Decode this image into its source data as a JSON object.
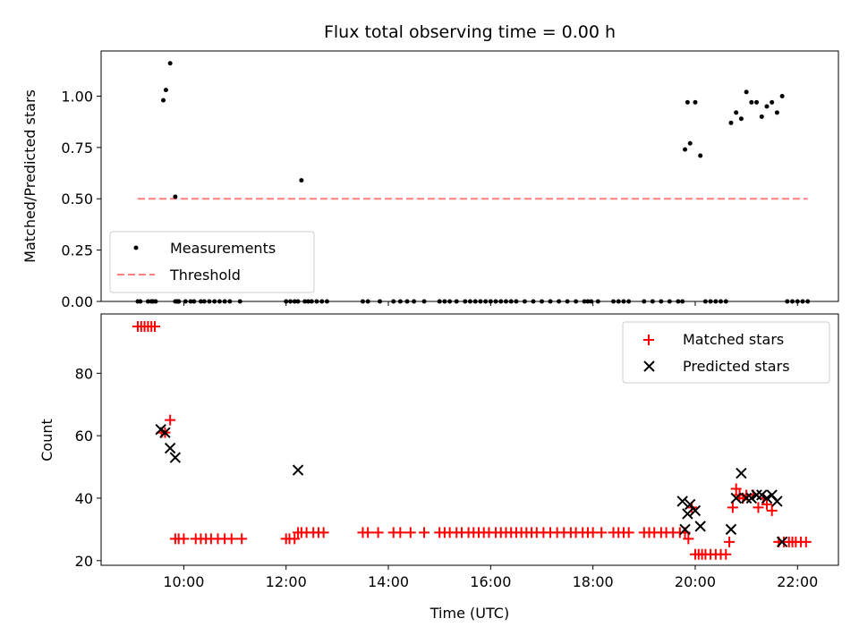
{
  "chart_data": [
    {
      "type": "scatter",
      "title": "Flux total observing time = 0.00 h",
      "xlabel": "",
      "ylabel": "Matched/Predicted stars",
      "ylim": [
        0,
        1.22
      ],
      "yticks": [
        "0.00",
        "0.25",
        "0.50",
        "0.75",
        "1.00"
      ],
      "yticks_values": [
        0,
        0.25,
        0.5,
        0.75,
        1.0
      ],
      "legend_position": "lower-left",
      "series": [
        {
          "name": "Measurements",
          "color": "#000000",
          "marker": "dot",
          "x": [
            "09:06",
            "09:09",
            "09:18",
            "09:22",
            "09:24",
            "09:27",
            "09:36",
            "09:39",
            "09:44",
            "09:50",
            "09:50",
            "09:52",
            "09:54",
            "09:54",
            "10:02",
            "10:08",
            "10:12",
            "10:20",
            "10:24",
            "10:30",
            "10:36",
            "10:42",
            "10:48",
            "10:54",
            "11:06",
            "12:00",
            "12:05",
            "12:10",
            "12:14",
            "12:18",
            "12:22",
            "12:26",
            "12:30",
            "12:36",
            "12:42",
            "12:48",
            "13:30",
            "13:36",
            "13:50",
            "14:06",
            "14:14",
            "14:22",
            "14:30",
            "14:42",
            "15:00",
            "15:06",
            "15:12",
            "15:20",
            "15:30",
            "15:36",
            "15:42",
            "15:48",
            "15:54",
            "16:00",
            "16:06",
            "16:12",
            "16:18",
            "16:24",
            "16:30",
            "16:40",
            "16:50",
            "17:00",
            "17:10",
            "17:20",
            "17:30",
            "17:40",
            "17:50",
            "17:54",
            "17:58",
            "18:06",
            "18:24",
            "18:30",
            "18:36",
            "18:42",
            "19:00",
            "19:10",
            "19:20",
            "19:30",
            "19:40",
            "19:45",
            "19:48",
            "19:51",
            "19:54",
            "20:00",
            "20:06",
            "20:12",
            "20:18",
            "20:24",
            "20:30",
            "20:36",
            "20:42",
            "20:48",
            "20:54",
            "21:00",
            "21:06",
            "21:12",
            "21:18",
            "21:24",
            "21:30",
            "21:36",
            "21:42",
            "21:48",
            "21:54",
            "22:00",
            "22:06",
            "22:12"
          ],
          "y": [
            0,
            0,
            0,
            0,
            0,
            0,
            0.98,
            1.03,
            1.16,
            0.51,
            0,
            0,
            0,
            0,
            0,
            0,
            0,
            0,
            0,
            0,
            0,
            0,
            0,
            0,
            0,
            0,
            0,
            0,
            0,
            0.59,
            0,
            0,
            0,
            0,
            0,
            0,
            0,
            0,
            0,
            0,
            0,
            0,
            0,
            0,
            0,
            0,
            0,
            0,
            0,
            0,
            0,
            0,
            0,
            0,
            0,
            0,
            0,
            0,
            0,
            0,
            0,
            0,
            0,
            0,
            0,
            0,
            0,
            0,
            0,
            0,
            0,
            0,
            0,
            0,
            0,
            0,
            0,
            0,
            0,
            0,
            0.74,
            0.97,
            0.77,
            0.97,
            0.71,
            0,
            0,
            0,
            0,
            0,
            0.87,
            0.92,
            0.89,
            1.02,
            0.97,
            0.97,
            0.9,
            0.95,
            0.97,
            0.92,
            1.0,
            0,
            0,
            0,
            0,
            0
          ]
        },
        {
          "name": "Threshold",
          "color": "#ff7f7f",
          "style": "dashed",
          "x": [
            "09:06",
            "22:12"
          ],
          "y": [
            0.5,
            0.5
          ]
        }
      ]
    },
    {
      "type": "scatter",
      "title": "",
      "xlabel": "Time (UTC)",
      "ylabel": "Count",
      "ylim": [
        18.5,
        99
      ],
      "xlim": [
        "08:23",
        "22:48"
      ],
      "xticks": [
        "10:00",
        "12:00",
        "14:00",
        "16:00",
        "18:00",
        "20:00",
        "22:00"
      ],
      "yticks": [
        "20",
        "40",
        "60",
        "80"
      ],
      "yticks_values": [
        20,
        40,
        60,
        80
      ],
      "legend_position": "upper-right",
      "series": [
        {
          "name": "Matched stars",
          "color": "#ff0000",
          "marker": "plus",
          "x": [
            "09:06",
            "09:10",
            "09:14",
            "09:18",
            "09:22",
            "09:26",
            "09:34",
            "09:38",
            "09:44",
            "09:50",
            "09:54",
            "10:00",
            "10:14",
            "10:20",
            "10:26",
            "10:32",
            "10:40",
            "10:48",
            "10:56",
            "11:08",
            "12:00",
            "12:04",
            "12:10",
            "12:14",
            "12:18",
            "12:24",
            "12:32",
            "12:38",
            "12:44",
            "13:30",
            "13:36",
            "13:48",
            "14:06",
            "14:14",
            "14:26",
            "14:42",
            "15:00",
            "15:06",
            "15:12",
            "15:20",
            "15:26",
            "15:34",
            "15:40",
            "15:46",
            "15:52",
            "15:58",
            "16:06",
            "16:12",
            "16:18",
            "16:24",
            "16:30",
            "16:36",
            "16:42",
            "16:48",
            "16:54",
            "17:02",
            "17:10",
            "17:18",
            "17:26",
            "17:34",
            "17:40",
            "17:48",
            "17:54",
            "18:00",
            "18:10",
            "18:24",
            "18:30",
            "18:36",
            "18:42",
            "19:00",
            "19:06",
            "19:12",
            "19:20",
            "19:26",
            "19:34",
            "19:42",
            "19:48",
            "19:52",
            "19:56",
            "20:00",
            "20:04",
            "20:08",
            "20:12",
            "20:18",
            "20:24",
            "20:30",
            "20:36",
            "20:40",
            "20:44",
            "20:48",
            "20:52",
            "20:56",
            "21:00",
            "21:08",
            "21:14",
            "21:20",
            "21:24",
            "21:30",
            "21:38",
            "21:44",
            "21:50",
            "21:54",
            "21:58",
            "22:04",
            "22:10"
          ],
          "y": [
            95,
            95,
            95,
            95,
            95,
            95,
            61,
            61,
            65,
            27,
            27,
            27,
            27,
            27,
            27,
            27,
            27,
            27,
            27,
            27,
            27,
            27,
            27,
            29,
            29,
            29,
            29,
            29,
            29,
            29,
            29,
            29,
            29,
            29,
            29,
            29,
            29,
            29,
            29,
            29,
            29,
            29,
            29,
            29,
            29,
            29,
            29,
            29,
            29,
            29,
            29,
            29,
            29,
            29,
            29,
            29,
            29,
            29,
            29,
            29,
            29,
            29,
            29,
            29,
            29,
            29,
            29,
            29,
            29,
            29,
            29,
            29,
            29,
            29,
            29,
            29,
            29,
            27,
            37,
            22,
            22,
            22,
            22,
            22,
            22,
            22,
            22,
            26,
            37,
            43,
            41,
            40,
            41,
            41,
            37,
            40,
            38,
            36,
            26,
            26,
            26,
            26,
            26,
            26,
            26
          ]
        },
        {
          "name": "Predicted stars",
          "color": "#000000",
          "marker": "x",
          "x": [
            "09:33",
            "09:38",
            "09:44",
            "09:50",
            "12:14",
            "19:45",
            "19:48",
            "19:51",
            "19:54",
            "20:00",
            "20:06",
            "20:42",
            "20:48",
            "20:54",
            "21:00",
            "21:06",
            "21:12",
            "21:18",
            "21:24",
            "21:30",
            "21:36",
            "21:42"
          ],
          "y": [
            62,
            61,
            56,
            53,
            49,
            39,
            30,
            35,
            38,
            36,
            31,
            30,
            40,
            48,
            40,
            40,
            41,
            41,
            40,
            41,
            39,
            26
          ]
        }
      ]
    }
  ]
}
